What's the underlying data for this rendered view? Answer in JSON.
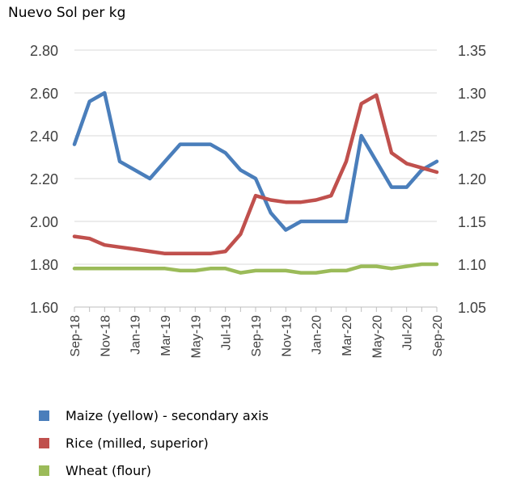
{
  "chart_data": {
    "type": "line",
    "ylabel": "Nuevo Sol per kg",
    "x": [
      "Sep-18",
      "Oct-18",
      "Nov-18",
      "Dec-18",
      "Jan-19",
      "Feb-19",
      "Mar-19",
      "Apr-19",
      "May-19",
      "Jun-19",
      "Jul-19",
      "Aug-19",
      "Sep-19",
      "Oct-19",
      "Nov-19",
      "Dec-19",
      "Jan-20",
      "Feb-20",
      "Mar-20",
      "Apr-20",
      "May-20",
      "Jun-20",
      "Jul-20",
      "Aug-20",
      "Sep-20"
    ],
    "xtick_labels": [
      "Sep-18",
      "Nov-18",
      "Jan-19",
      "Mar-19",
      "May-19",
      "Jul-19",
      "Sep-19",
      "Nov-19",
      "Jan-20",
      "Mar-20",
      "May-20",
      "Jul-20",
      "Sep-20"
    ],
    "ylim": [
      1.6,
      2.8
    ],
    "yticks": [
      "1.60",
      "1.80",
      "2.00",
      "2.20",
      "2.40",
      "2.60",
      "2.80"
    ],
    "y2lim": [
      1.05,
      1.35
    ],
    "y2ticks": [
      "1.05",
      "1.10",
      "1.15",
      "1.20",
      "1.25",
      "1.30",
      "1.35"
    ],
    "grid": true,
    "legend_position": "bottom",
    "series": [
      {
        "name": "Maize (yellow)  - secondary axis",
        "axis": "secondary",
        "color": "#4a7ebb",
        "values": [
          1.24,
          1.29,
          1.3,
          1.22,
          1.21,
          1.2,
          1.22,
          1.24,
          1.24,
          1.24,
          1.23,
          1.21,
          1.2,
          1.16,
          1.14,
          1.15,
          1.15,
          1.15,
          1.15,
          1.25,
          1.22,
          1.19,
          1.19,
          1.21,
          1.22
        ]
      },
      {
        "name": "Rice (milled, superior)",
        "axis": "primary",
        "color": "#c0504d",
        "values": [
          1.93,
          1.92,
          1.89,
          1.88,
          1.87,
          1.86,
          1.85,
          1.85,
          1.85,
          1.85,
          1.86,
          1.94,
          2.12,
          2.1,
          2.09,
          2.09,
          2.1,
          2.12,
          2.28,
          2.55,
          2.59,
          2.32,
          2.27,
          2.25,
          2.23
        ]
      },
      {
        "name": "Wheat (flour)",
        "axis": "primary",
        "color": "#9bbb59",
        "values": [
          1.78,
          1.78,
          1.78,
          1.78,
          1.78,
          1.78,
          1.78,
          1.77,
          1.77,
          1.78,
          1.78,
          1.76,
          1.77,
          1.77,
          1.77,
          1.76,
          1.76,
          1.77,
          1.77,
          1.79,
          1.79,
          1.78,
          1.79,
          1.8,
          1.8
        ]
      }
    ]
  }
}
